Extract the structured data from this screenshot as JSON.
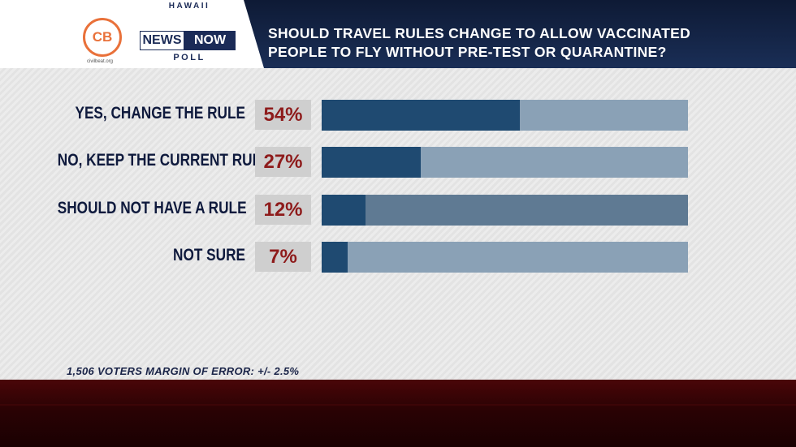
{
  "header": {
    "question_line1": "SHOULD TRAVEL RULES CHANGE TO ALLOW VACCINATED",
    "question_line2": "PEOPLE TO FLY WITHOUT PRE-TEST OR QUARANTINE?"
  },
  "logos": {
    "cb_text": "CB",
    "cb_url": "civilbeat.org",
    "hawaii": "HAWAII",
    "news": "NEWS",
    "now": "NOW",
    "poll": "POLL"
  },
  "footer": {
    "note": "1,506 VOTERS MARGIN OF ERROR: +/- 2.5%"
  },
  "colors": {
    "bar_fill": "#1f4a71",
    "bar_track": "#8aa1b6",
    "percent_text": "#8e1b1b",
    "label_text": "#0f1a3d",
    "header_bg": "#12224a",
    "accent_orange": "#e9713a"
  },
  "chart_data": {
    "type": "bar",
    "orientation": "horizontal",
    "categories": [
      "YES, CHANGE THE RULE",
      "NO, KEEP THE CURRENT RULE",
      "SHOULD NOT HAVE A RULE",
      "NOT SURE"
    ],
    "values": [
      54,
      27,
      12,
      7
    ],
    "value_labels": [
      "54%",
      "27%",
      "12%",
      "7%"
    ],
    "xlim": [
      0,
      100
    ],
    "title": "SHOULD TRAVEL RULES CHANGE TO ALLOW VACCINATED PEOPLE TO FLY WITHOUT PRE-TEST OR QUARANTINE?",
    "grid": false,
    "legend": "none"
  }
}
